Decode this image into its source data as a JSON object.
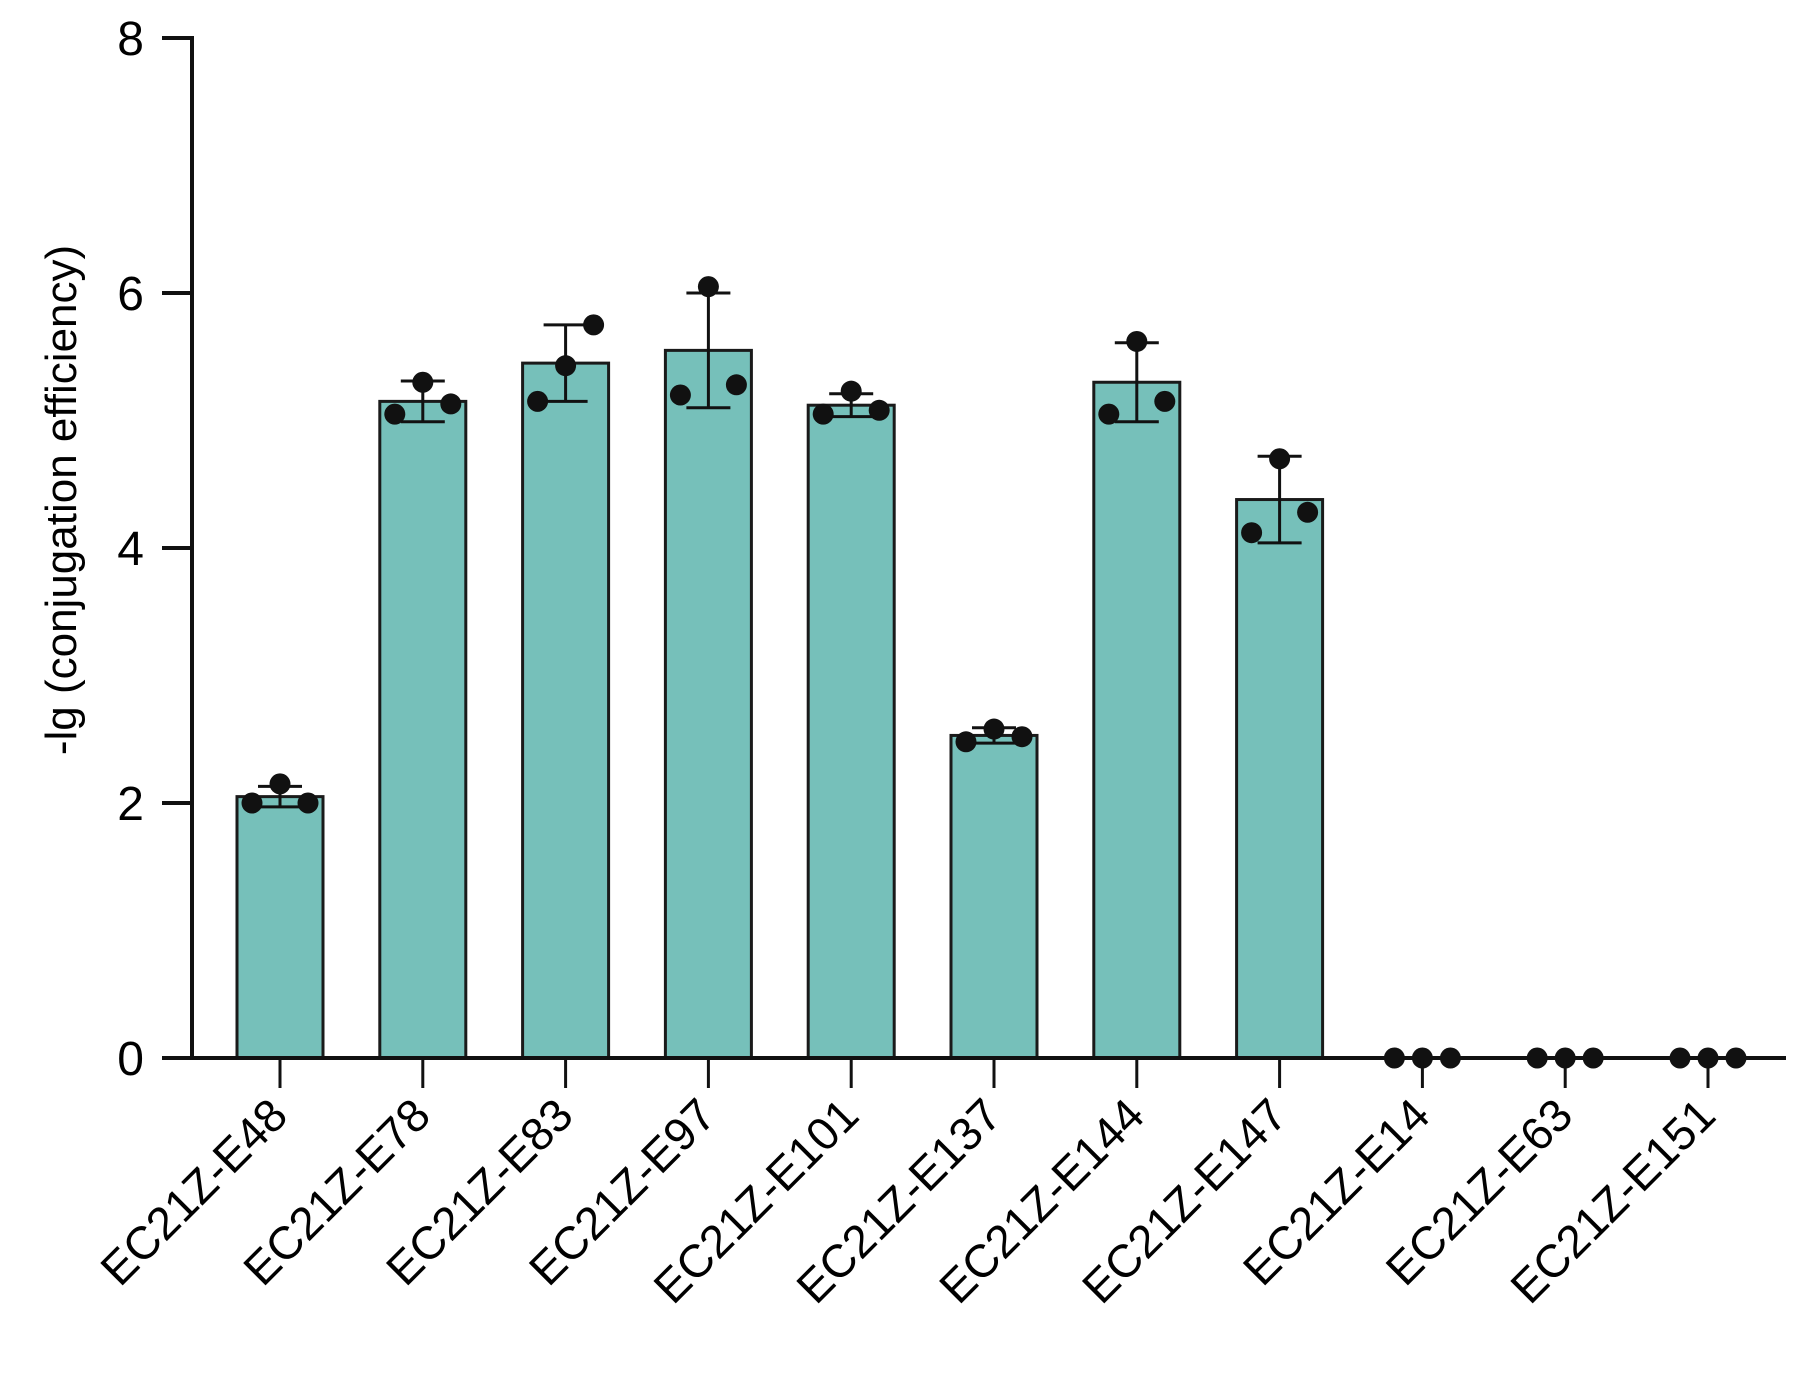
{
  "chart_data": {
    "type": "bar",
    "title": "",
    "xlabel": "",
    "ylabel": "-lg (conjugation efficiency)",
    "ylim": [
      0,
      8
    ],
    "yticks": [
      0,
      2,
      4,
      6,
      8
    ],
    "grid": false,
    "bar_color": "#76c0ba",
    "categories": [
      "EC21Z-E48",
      "EC21Z-E78",
      "EC21Z-E83",
      "EC21Z-E97",
      "EC21Z-E101",
      "EC21Z-E137",
      "EC21Z-E144",
      "EC21Z-E147",
      "EC21Z-E14",
      "EC21Z-E63",
      "EC21Z-E151"
    ],
    "values": [
      2.05,
      5.15,
      5.45,
      5.55,
      5.12,
      2.53,
      5.3,
      4.38,
      0,
      0,
      0
    ],
    "error": [
      0.08,
      0.16,
      0.3,
      0.45,
      0.09,
      0.06,
      0.31,
      0.34,
      0,
      0,
      0
    ],
    "points": [
      [
        2.0,
        2.15,
        2.0
      ],
      [
        5.05,
        5.3,
        5.13
      ],
      [
        5.15,
        5.43,
        5.75
      ],
      [
        5.2,
        6.05,
        5.28
      ],
      [
        5.05,
        5.23,
        5.08
      ],
      [
        2.48,
        2.58,
        2.52
      ],
      [
        5.05,
        5.62,
        5.15
      ],
      [
        4.12,
        4.7,
        4.28
      ],
      [
        0,
        0,
        0
      ],
      [
        0,
        0,
        0
      ],
      [
        0,
        0,
        0
      ]
    ]
  }
}
